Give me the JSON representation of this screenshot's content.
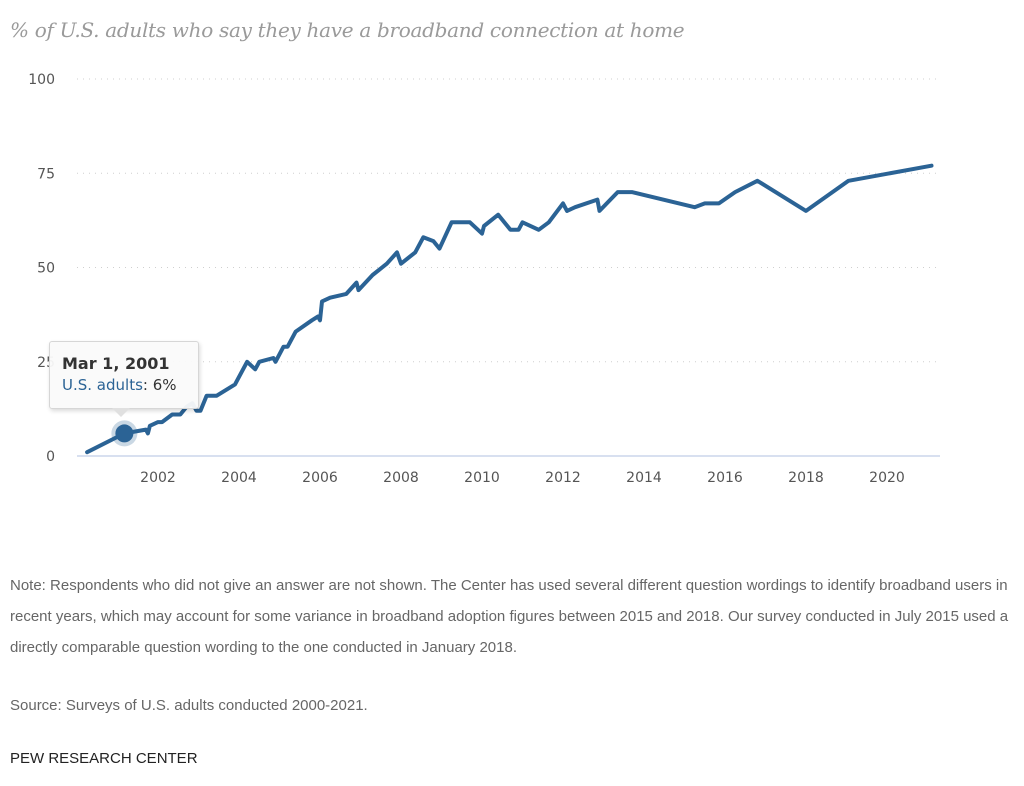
{
  "chart_data": {
    "type": "line",
    "title": "% of U.S. adults who say they have a broadband connection at home",
    "xlabel": "",
    "ylabel": "",
    "xlim": [
      2000,
      2021.5
    ],
    "ylim": [
      0,
      100
    ],
    "grid": true,
    "yticks": [
      0,
      25,
      50,
      75,
      100
    ],
    "xticks": [
      2002,
      2004,
      2006,
      2008,
      2010,
      2012,
      2014,
      2016,
      2018,
      2020
    ],
    "series": [
      {
        "name": "U.S. adults",
        "color": "#2b6395",
        "x": [
          2000.25,
          2001.17,
          2001.7,
          2001.75,
          2001.8,
          2002.0,
          2002.1,
          2002.35,
          2002.55,
          2002.7,
          2002.85,
          2002.95,
          2003.05,
          2003.2,
          2003.45,
          2003.6,
          2003.9,
          2004.2,
          2004.4,
          2004.5,
          2004.85,
          2004.9,
          2005.1,
          2005.2,
          2005.4,
          2005.8,
          2005.95,
          2006.0,
          2006.05,
          2006.25,
          2006.65,
          2006.9,
          2006.95,
          2007.3,
          2007.65,
          2007.9,
          2008.0,
          2008.35,
          2008.55,
          2008.8,
          2008.95,
          2009.25,
          2009.7,
          2010.0,
          2010.05,
          2010.4,
          2010.7,
          2010.9,
          2011.0,
          2011.4,
          2011.65,
          2012.0,
          2012.1,
          2012.3,
          2012.85,
          2012.9,
          2013.35,
          2013.7,
          2015.25,
          2015.5,
          2015.85,
          2016.25,
          2016.8,
          2018.0,
          2019.05,
          2021.1
        ],
        "y": [
          1,
          6,
          7,
          6,
          8,
          9,
          9,
          11,
          11,
          13,
          14,
          12,
          12,
          16,
          16,
          17,
          19,
          25,
          23,
          25,
          26,
          25,
          29,
          29,
          33,
          36,
          37,
          36,
          41,
          42,
          43,
          46,
          44,
          48,
          51,
          54,
          51,
          54,
          58,
          57,
          55,
          62,
          62,
          59,
          61,
          64,
          60,
          60,
          62,
          60,
          62,
          67,
          65,
          66,
          68,
          65,
          70,
          70,
          66,
          67,
          67,
          70,
          73,
          65,
          73,
          77
        ]
      }
    ],
    "tooltip": {
      "date": "Mar 1, 2001",
      "series_label": "U.S. adults",
      "separator": ": ",
      "value_label": "6%",
      "x": 2001.17,
      "y": 6
    }
  },
  "notes": {
    "note": "Note: Respondents who did not give an answer are not shown. The Center has used several different question wordings to identify broadband users in recent years, which may account for some variance in broadband adoption figures between 2015 and 2018. Our survey conducted in July 2015 used a directly comparable question wording to the one conducted in January 2018.",
    "source": "Source: Surveys of U.S. adults conducted 2000-2021.",
    "brand": "PEW RESEARCH CENTER"
  }
}
